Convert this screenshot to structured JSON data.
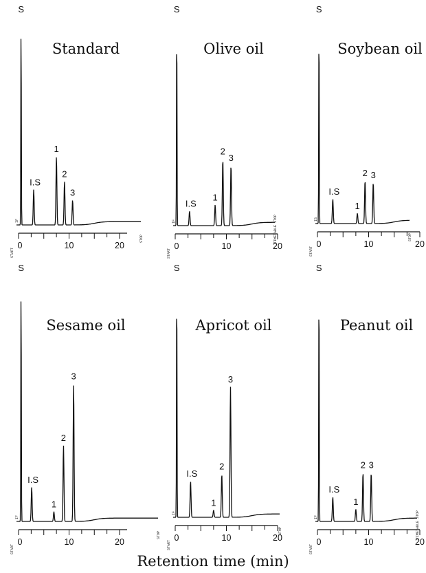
{
  "figure": {
    "xlabel": "Retention time (min)"
  },
  "chart_data": [
    {
      "type": "line",
      "title": "Standard",
      "x_unit": "min",
      "xlim": [
        0,
        24
      ],
      "xticks": [
        0,
        10,
        20
      ],
      "small_labels": [
        "START",
        "IF",
        "STOP"
      ],
      "peaks": [
        {
          "label": "S",
          "rt": 0.5,
          "height": 1.0
        },
        {
          "label": "I.S",
          "rt": 3.0,
          "height": 0.17
        },
        {
          "label": "1",
          "rt": 7.5,
          "height": 0.33
        },
        {
          "label": "2",
          "rt": 9.1,
          "height": 0.21
        },
        {
          "label": "3",
          "rt": 10.7,
          "height": 0.12
        }
      ]
    },
    {
      "type": "line",
      "title": "Olive oil",
      "x_unit": "min",
      "xlim": [
        0,
        20
      ],
      "xticks": [
        0,
        10,
        20
      ],
      "small_labels": [
        "START",
        "IF",
        "TIMETABLE STOP"
      ],
      "peaks": [
        {
          "label": "S",
          "rt": 0.3,
          "height": 1.0
        },
        {
          "label": "I.S",
          "rt": 2.8,
          "height": 0.07
        },
        {
          "label": "1",
          "rt": 7.8,
          "height": 0.1
        },
        {
          "label": "2",
          "rt": 9.3,
          "height": 0.32
        },
        {
          "label": "3",
          "rt": 10.9,
          "height": 0.29
        }
      ]
    },
    {
      "type": "line",
      "title": "Soybean oil",
      "x_unit": "min",
      "xlim": [
        0,
        20
      ],
      "xticks": [
        0,
        10,
        20
      ],
      "small_labels": [
        "START",
        "IS",
        "STOP"
      ],
      "peaks": [
        {
          "label": "S",
          "rt": 0.3,
          "height": 1.0
        },
        {
          "label": "I.S",
          "rt": 3.0,
          "height": 0.12
        },
        {
          "label": "1",
          "rt": 7.8,
          "height": 0.05
        },
        {
          "label": "2",
          "rt": 9.3,
          "height": 0.21
        },
        {
          "label": "3",
          "rt": 10.9,
          "height": 0.2
        }
      ]
    },
    {
      "type": "line",
      "title": "Sesame oil",
      "x_unit": "min",
      "xlim": [
        0,
        28
      ],
      "xticks": [
        0,
        10,
        20
      ],
      "small_labels": [
        "START",
        "IF",
        "STOP"
      ],
      "peaks": [
        {
          "label": "S",
          "rt": 0.5,
          "height": 1.0
        },
        {
          "label": "I.S",
          "rt": 2.6,
          "height": 0.14
        },
        {
          "label": "1",
          "rt": 7.0,
          "height": 0.04
        },
        {
          "label": "2",
          "rt": 8.9,
          "height": 0.31
        },
        {
          "label": "3",
          "rt": 10.9,
          "height": 0.56
        }
      ]
    },
    {
      "type": "line",
      "title": "Apricot oil",
      "x_unit": "min",
      "xlim": [
        0,
        20
      ],
      "xticks": [
        0,
        10,
        20
      ],
      "small_labels": [
        "START",
        "IF",
        "STOP"
      ],
      "peaks": [
        {
          "label": "S",
          "rt": 0.3,
          "height": 1.0
        },
        {
          "label": "I.S",
          "rt": 3.0,
          "height": 0.15
        },
        {
          "label": "1",
          "rt": 7.5,
          "height": 0.03
        },
        {
          "label": "2",
          "rt": 9.1,
          "height": 0.18
        },
        {
          "label": "3",
          "rt": 10.8,
          "height": 0.54
        }
      ]
    },
    {
      "type": "line",
      "title": "Peanut oil",
      "x_unit": "min",
      "xlim": [
        0,
        20
      ],
      "xticks": [
        0,
        10,
        20
      ],
      "small_labels": [
        "START",
        "IF",
        "TIMETABLE STOP"
      ],
      "peaks": [
        {
          "label": "S",
          "rt": 0.3,
          "height": 1.0
        },
        {
          "label": "I.S",
          "rt": 3.0,
          "height": 0.1
        },
        {
          "label": "1",
          "rt": 7.5,
          "height": 0.05
        },
        {
          "label": "2",
          "rt": 8.9,
          "height": 0.2
        },
        {
          "label": "3",
          "rt": 10.5,
          "height": 0.2
        }
      ]
    }
  ]
}
